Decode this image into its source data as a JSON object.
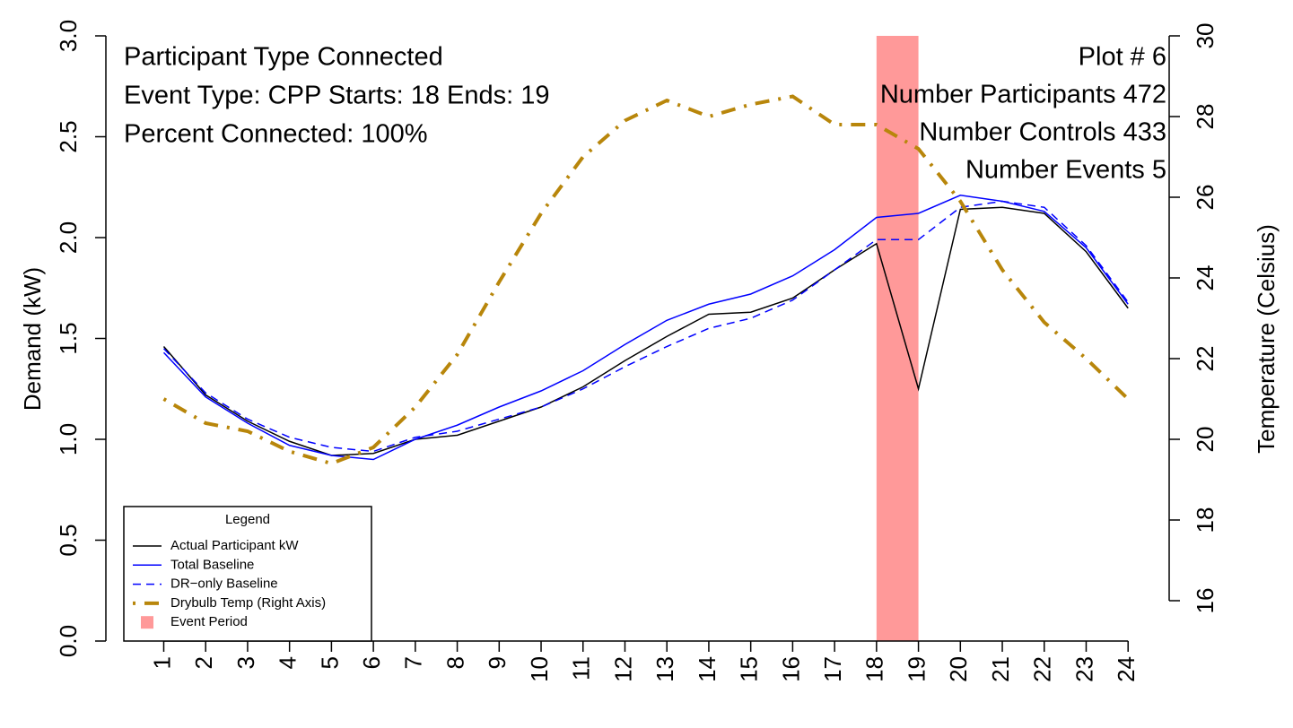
{
  "chart_data": {
    "type": "line",
    "annotations_left": [
      "Participant Type Connected",
      "Event Type: CPP Starts:  18  Ends:  19",
      "Percent Connected: 100%"
    ],
    "annotations_right": [
      "Plot # 6",
      "Number Participants 472",
      "Number Controls 433",
      "Number Events 5"
    ],
    "y_label": "Demand (kW)",
    "y2_label": "Temperature (Celsius)",
    "legend_title": "Legend",
    "legend": "bottom-left",
    "x": [
      1,
      2,
      3,
      4,
      5,
      6,
      7,
      8,
      9,
      10,
      11,
      12,
      13,
      14,
      15,
      16,
      17,
      18,
      19,
      20,
      21,
      22,
      23,
      24
    ],
    "xlim": [
      -0.38,
      24.98
    ],
    "xticks": [
      1,
      2,
      3,
      4,
      5,
      6,
      7,
      8,
      9,
      10,
      11,
      12,
      13,
      14,
      15,
      16,
      17,
      18,
      19,
      20,
      21,
      22,
      23,
      24
    ],
    "ylim": [
      0,
      3
    ],
    "yticks": [
      {
        "value": 0,
        "label": "0.0"
      },
      {
        "value": 0.5,
        "label": "0.5"
      },
      {
        "value": 1,
        "label": "1.0"
      },
      {
        "value": 1.5,
        "label": "1.5"
      },
      {
        "value": 2,
        "label": "2.0"
      },
      {
        "value": 2.5,
        "label": "2.5"
      },
      {
        "value": 3,
        "label": "3.0"
      }
    ],
    "y2lim": [
      15,
      30
    ],
    "y2ticks": [
      16,
      18,
      20,
      22,
      24,
      26,
      28,
      30
    ],
    "series": [
      {
        "name": "Actual Participant kW",
        "color": "#000000",
        "dash": "solid",
        "width": 1.5,
        "values": [
          1.46,
          1.22,
          1.09,
          0.99,
          0.92,
          0.93,
          1.0,
          1.02,
          1.09,
          1.16,
          1.26,
          1.39,
          1.51,
          1.62,
          1.63,
          1.7,
          1.84,
          1.97,
          1.25,
          2.14,
          2.15,
          2.12,
          1.93,
          1.65
        ]
      },
      {
        "name": "Total Baseline",
        "color": "#0000ff",
        "dash": "solid",
        "width": 1.5,
        "values": [
          1.43,
          1.21,
          1.08,
          0.97,
          0.92,
          0.9,
          1.0,
          1.07,
          1.16,
          1.24,
          1.34,
          1.47,
          1.59,
          1.67,
          1.72,
          1.81,
          1.94,
          2.1,
          2.12,
          2.21,
          2.18,
          2.13,
          1.95,
          1.67
        ]
      },
      {
        "name": "DR−only Baseline",
        "color": "#0000ff",
        "dash": "dashed",
        "width": 1.5,
        "values": [
          1.45,
          1.23,
          1.1,
          1.01,
          0.96,
          0.94,
          1.01,
          1.04,
          1.1,
          1.16,
          1.25,
          1.36,
          1.46,
          1.55,
          1.6,
          1.69,
          1.84,
          1.99,
          1.99,
          2.15,
          2.18,
          2.15,
          1.96,
          1.68
        ]
      },
      {
        "name": "Drybulb Temp (Right Axis)",
        "color": "#b8860b",
        "dash": "dotdash",
        "width": 4,
        "axis": "y2",
        "values": [
          21.0,
          20.4,
          20.2,
          19.7,
          19.4,
          19.8,
          20.8,
          22.1,
          23.9,
          25.6,
          27.0,
          27.9,
          28.4,
          28.0,
          28.3,
          28.5,
          27.8,
          27.8,
          27.2,
          25.9,
          24.2,
          22.9,
          22.0,
          21.0
        ]
      }
    ],
    "event": {
      "name": "Event Period",
      "start": 18,
      "end": 19,
      "color": "#ff9999"
    }
  }
}
